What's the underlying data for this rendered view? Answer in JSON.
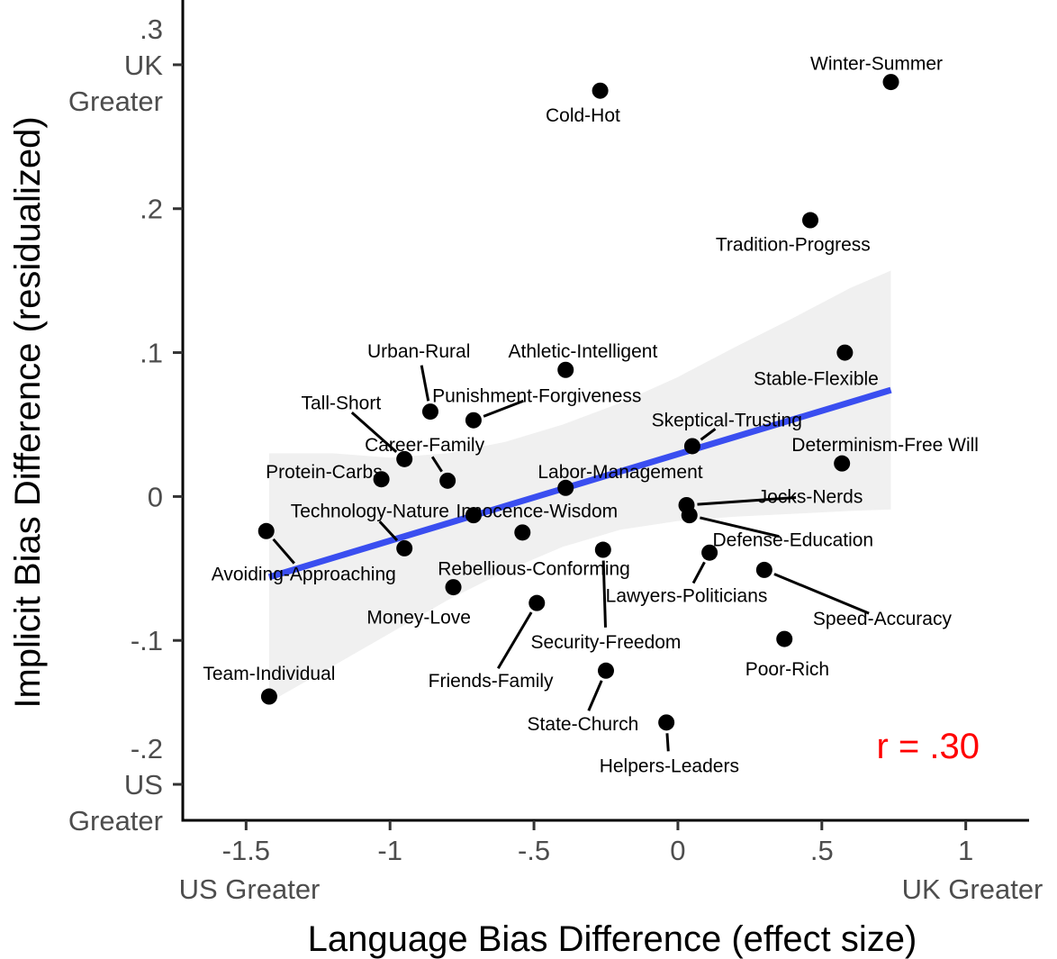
{
  "chart_data": {
    "type": "scatter",
    "xlabel": "Language Bias Difference (effect size)",
    "ylabel": "Implicit Bias Difference (residualized)",
    "xlim": [
      -1.72,
      1.22
    ],
    "ylim": [
      -0.225,
      0.345
    ],
    "x_ticks": [
      {
        "value": -1.5,
        "label": "-1.5"
      },
      {
        "value": -1.0,
        "label": "-1"
      },
      {
        "value": -0.5,
        "label": "-.5"
      },
      {
        "value": 0.0,
        "label": "0"
      },
      {
        "value": 0.5,
        "label": ".5"
      },
      {
        "value": 1.0,
        "label": "1"
      }
    ],
    "y_ticks": [
      {
        "value": 0.3,
        "lines": [
          ".3",
          "UK",
          "Greater"
        ]
      },
      {
        "value": 0.2,
        "lines": [
          ".2"
        ]
      },
      {
        "value": 0.1,
        "lines": [
          ".1"
        ]
      },
      {
        "value": 0.0,
        "lines": [
          "0"
        ]
      },
      {
        "value": -0.1,
        "lines": [
          "-.1"
        ]
      },
      {
        "value": -0.2,
        "lines": [
          "-.2",
          "US",
          "Greater"
        ]
      }
    ],
    "x_side_labels": {
      "left": "US Greater",
      "right": "UK Greater"
    },
    "annotation": {
      "text": "r = .30",
      "color": "#ff0000"
    },
    "colors": {
      "points": "#000000",
      "fit_line": "#3a4ef0",
      "ribbon": "#f0f0f0"
    },
    "grid": false,
    "fit_line": {
      "x": [
        -1.42,
        0.74
      ],
      "y": [
        -0.056,
        0.074
      ]
    },
    "confidence_band": {
      "x": [
        -1.42,
        -1.2,
        -1.0,
        -0.8,
        -0.6,
        -0.4,
        -0.2,
        0.0,
        0.2,
        0.4,
        0.6,
        0.74
      ],
      "upper": [
        0.03,
        0.03,
        0.027,
        0.03,
        0.038,
        0.05,
        0.065,
        0.083,
        0.104,
        0.124,
        0.145,
        0.157
      ],
      "lower": [
        -0.143,
        -0.118,
        -0.095,
        -0.072,
        -0.052,
        -0.035,
        -0.023,
        -0.017,
        -0.014,
        -0.012,
        -0.01,
        -0.009
      ]
    },
    "points": [
      {
        "label": "Winter-Summer",
        "x": 0.74,
        "y": 0.288,
        "lx": 0.69,
        "ly": 0.301
      },
      {
        "label": "Cold-Hot",
        "x": -0.27,
        "y": 0.282,
        "lx": -0.33,
        "ly": 0.265
      },
      {
        "label": "Tradition-Progress",
        "x": 0.46,
        "y": 0.192,
        "lx": 0.4,
        "ly": 0.175
      },
      {
        "label": "Athletic-Intelligent",
        "x": -0.39,
        "y": 0.088,
        "lx": -0.33,
        "ly": 0.101
      },
      {
        "label": "Stable-Flexible",
        "x": 0.58,
        "y": 0.1,
        "lx": 0.48,
        "ly": 0.082
      },
      {
        "label": "Urban-Rural",
        "x": -0.86,
        "y": 0.059,
        "lx": -0.9,
        "ly": 0.101,
        "leader": true
      },
      {
        "label": "Tall-Short",
        "x": -0.95,
        "y": 0.026,
        "lx": -1.17,
        "ly": 0.065,
        "leader": true
      },
      {
        "label": "Punishment-Forgiveness",
        "x": -0.71,
        "y": 0.053,
        "lx": -0.49,
        "ly": 0.07,
        "leader": true
      },
      {
        "label": "Skeptical-Trusting",
        "x": 0.05,
        "y": 0.035,
        "lx": 0.17,
        "ly": 0.053,
        "leader": true
      },
      {
        "label": "Determinism-Free Will",
        "x": 0.57,
        "y": 0.023,
        "lx": 0.72,
        "ly": 0.036
      },
      {
        "label": "Career-Family",
        "x": -0.8,
        "y": 0.011,
        "lx": -0.88,
        "ly": 0.036,
        "leader": true
      },
      {
        "label": "Protein-Carbs.",
        "x": -1.03,
        "y": 0.012,
        "lx": -1.22,
        "ly": 0.017
      },
      {
        "label": "Labor-Management",
        "x": -0.39,
        "y": 0.006,
        "lx": -0.2,
        "ly": 0.017
      },
      {
        "label": "Jocks-Nerds",
        "x": 0.03,
        "y": -0.006,
        "lx": 0.46,
        "ly": 0.0,
        "leader": true
      },
      {
        "label": "Technology-Nature",
        "x": -0.95,
        "y": -0.036,
        "lx": -1.07,
        "ly": -0.01,
        "leader": true
      },
      {
        "label": "Innocence-Wisdom",
        "x": -0.71,
        "y": -0.013,
        "lx": -0.49,
        "ly": -0.01
      },
      {
        "label": "Defense-Education",
        "x": 0.04,
        "y": -0.013,
        "lx": 0.4,
        "ly": -0.03,
        "leader": true
      },
      {
        "label": "Avoiding-Approaching",
        "x": -1.43,
        "y": -0.024,
        "lx": -1.3,
        "ly": -0.054,
        "leader": true
      },
      {
        "label": "Rebellious-Conforming",
        "x": -0.54,
        "y": -0.025,
        "lx": -0.5,
        "ly": -0.05
      },
      {
        "label": "Lawyers-Politicians",
        "x": 0.11,
        "y": -0.039,
        "lx": 0.03,
        "ly": -0.069,
        "leader": true
      },
      {
        "label": "Speed-Accuracy",
        "x": 0.3,
        "y": -0.051,
        "lx": 0.71,
        "ly": -0.085,
        "leader": true
      },
      {
        "label": "Money-Love",
        "x": -0.78,
        "y": -0.063,
        "lx": -0.9,
        "ly": -0.084
      },
      {
        "label": "Security-Freedom",
        "x": -0.26,
        "y": -0.037,
        "lx": -0.25,
        "ly": -0.101,
        "leader": true
      },
      {
        "label": "Friends-Family",
        "x": -0.49,
        "y": -0.074,
        "lx": -0.65,
        "ly": -0.128,
        "leader": true
      },
      {
        "label": "Poor-Rich",
        "x": 0.37,
        "y": -0.099,
        "lx": 0.38,
        "ly": -0.12
      },
      {
        "label": "Team-Individual",
        "x": -1.42,
        "y": -0.139,
        "lx": -1.42,
        "ly": -0.123
      },
      {
        "label": "State-Church",
        "x": -0.25,
        "y": -0.121,
        "lx": -0.33,
        "ly": -0.158,
        "leader": true
      },
      {
        "label": "Helpers-Leaders",
        "x": -0.04,
        "y": -0.157,
        "lx": -0.03,
        "ly": -0.187,
        "leader": true
      }
    ]
  }
}
